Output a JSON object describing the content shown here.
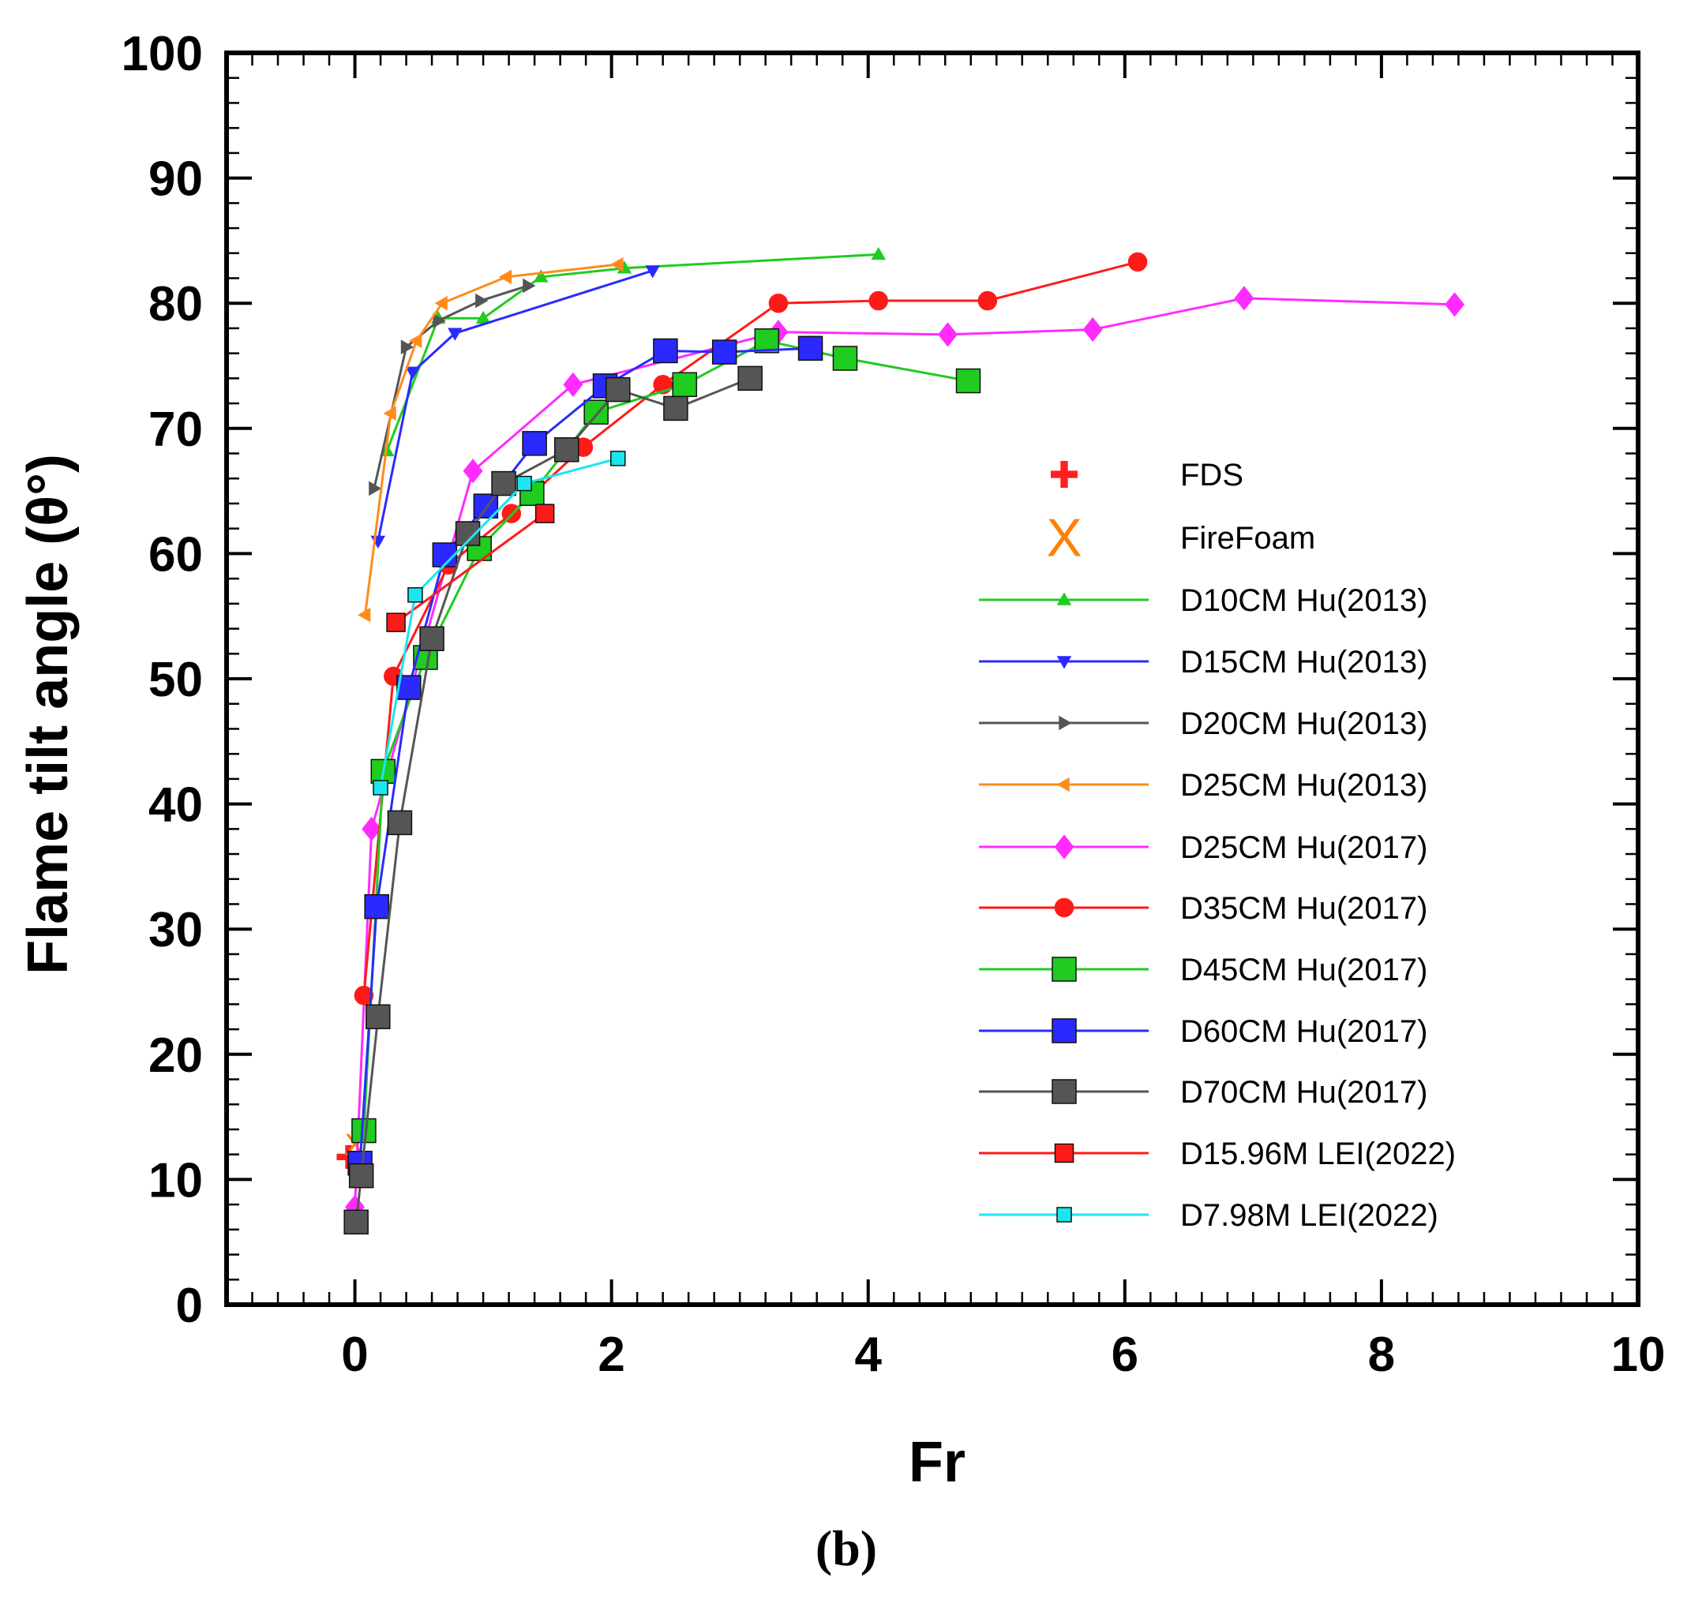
{
  "chart_data": {
    "type": "line",
    "title": "",
    "xlabel": "Fr",
    "ylabel": "Flame tilt angle (θ°)",
    "caption": "(b)",
    "xlim": [
      -1,
      10
    ],
    "ylim": [
      0,
      100
    ],
    "xticks": [
      0,
      2,
      4,
      6,
      8,
      10
    ],
    "yticks": [
      0,
      10,
      20,
      30,
      40,
      50,
      60,
      70,
      80,
      90,
      100
    ],
    "grid": false,
    "legend_position": "center-right",
    "series": [
      {
        "name": "FDS",
        "marker": "plus",
        "line": false,
        "color": "#ff1f1f",
        "x": [
          -0.05
        ],
        "y": [
          11.8
        ]
      },
      {
        "name": "FireFoam",
        "marker": "x",
        "line": false,
        "color": "#ff8000",
        "x": [
          0.0,
          0.05
        ],
        "y": [
          12.8,
          10.6
        ]
      },
      {
        "name": "D10CM Hu(2013)",
        "marker": "triangle-up",
        "size": "small",
        "color": "#1fcc1f",
        "x": [
          0.25,
          0.65,
          1.0,
          1.45,
          2.1,
          4.08
        ],
        "y": [
          68.2,
          78.8,
          78.8,
          82.1,
          82.8,
          83.9
        ]
      },
      {
        "name": "D15CM Hu(2013)",
        "marker": "triangle-down",
        "size": "small",
        "color": "#2a2aff",
        "x": [
          0.18,
          0.45,
          0.78,
          2.32
        ],
        "y": [
          61.0,
          74.5,
          77.6,
          82.6
        ]
      },
      {
        "name": "D20CM Hu(2013)",
        "marker": "triangle-right",
        "size": "small",
        "color": "#555555",
        "x": [
          0.15,
          0.4,
          0.65,
          0.98,
          1.35
        ],
        "y": [
          65.2,
          76.5,
          78.6,
          80.2,
          81.4
        ]
      },
      {
        "name": "D25CM Hu(2013)",
        "marker": "triangle-left",
        "size": "small",
        "color": "#ff8c1a",
        "x": [
          0.08,
          0.28,
          0.48,
          0.68,
          1.18,
          2.05
        ],
        "y": [
          55.1,
          71.2,
          77.0,
          80.0,
          82.1,
          83.1
        ]
      },
      {
        "name": "D25CM Hu(2017)",
        "marker": "diamond",
        "size": "medium",
        "color": "#ff2bff",
        "x": [
          0.0,
          0.13,
          0.92,
          1.7,
          3.3,
          4.62,
          5.75,
          6.93,
          8.57
        ],
        "y": [
          7.8,
          38.0,
          66.6,
          73.5,
          77.7,
          77.5,
          77.9,
          80.4,
          79.9
        ]
      },
      {
        "name": "D35CM Hu(2017)",
        "marker": "circle",
        "size": "medium",
        "color": "#ff1a1a",
        "x": [
          0.07,
          0.3,
          0.73,
          1.22,
          1.78,
          2.4,
          3.3,
          4.08,
          4.93,
          6.1
        ],
        "y": [
          24.7,
          50.2,
          59.1,
          63.2,
          68.5,
          73.5,
          80.0,
          80.2,
          80.2,
          83.3
        ]
      },
      {
        "name": "D45CM Hu(2017)",
        "marker": "square",
        "size": "large",
        "color": "#1fcc1f",
        "x": [
          0.07,
          0.22,
          0.55,
          0.97,
          1.38,
          1.88,
          2.57,
          3.21,
          3.82,
          4.78
        ],
        "y": [
          13.9,
          42.6,
          51.7,
          60.4,
          64.8,
          71.3,
          73.5,
          77.0,
          75.6,
          73.8
        ]
      },
      {
        "name": "D60CM Hu(2017)",
        "marker": "square",
        "size": "large",
        "color": "#2a2aff",
        "x": [
          0.04,
          0.17,
          0.42,
          0.7,
          1.02,
          1.4,
          1.95,
          2.42,
          2.88,
          3.55
        ],
        "y": [
          11.3,
          31.8,
          49.3,
          59.9,
          63.8,
          68.8,
          73.4,
          76.2,
          76.1,
          76.4
        ]
      },
      {
        "name": "D70CM Hu(2017)",
        "marker": "square",
        "size": "large",
        "color": "#555555",
        "x": [
          0.01,
          0.05,
          0.18,
          0.35,
          0.6,
          0.88,
          1.16,
          1.65,
          2.05,
          2.5,
          3.08
        ],
        "y": [
          6.6,
          10.3,
          23.0,
          38.5,
          53.2,
          61.6,
          65.6,
          68.3,
          73.1,
          71.6,
          74.0
        ]
      },
      {
        "name": "D15.96M LEI(2022)",
        "marker": "square",
        "size": "medium",
        "color": "#ff1a1a",
        "x": [
          0.32,
          1.48
        ],
        "y": [
          54.5,
          63.2
        ]
      },
      {
        "name": "D7.98M LEI(2022)",
        "marker": "square",
        "size": "small",
        "color": "#1ae6f0",
        "x": [
          0.2,
          0.47,
          1.32,
          2.05
        ],
        "y": [
          41.3,
          56.7,
          65.6,
          67.6
        ]
      }
    ]
  }
}
